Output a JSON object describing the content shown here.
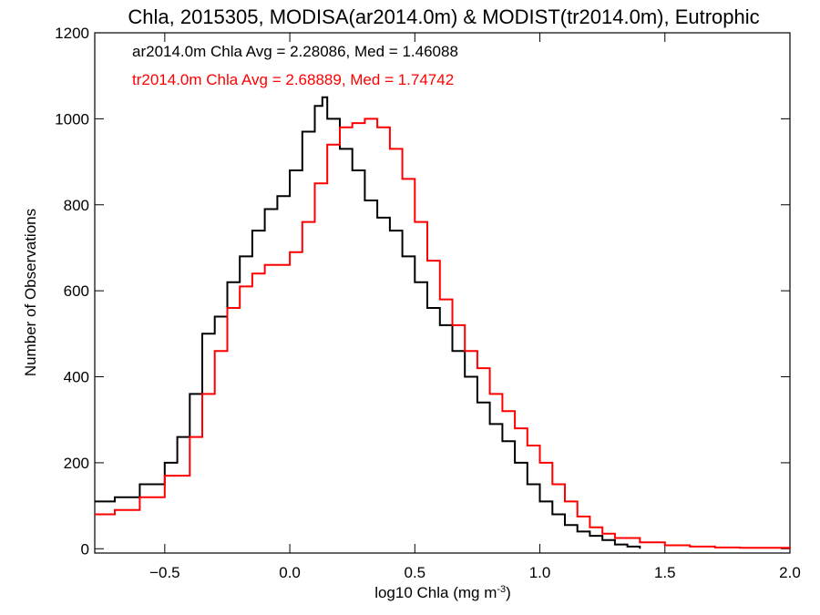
{
  "chart_data": {
    "type": "line",
    "title": "Chla, 2015305, MODISA(ar2014.0m) & MODIST(tr2014.0m), Eutrophic",
    "xlabel_main": "log10 Chla (mg m",
    "xlabel_exponent": "-3",
    "xlabel_close": ")",
    "ylabel": "Number of Observations",
    "xlim": [
      -0.78,
      2.0
    ],
    "ylim": [
      -10,
      1200
    ],
    "grid": false,
    "x_ticks": [
      -0.5,
      0.0,
      0.5,
      1.0,
      1.5,
      2.0
    ],
    "x_tick_labels": [
      "−0.5",
      "0.0",
      "0.5",
      "1.0",
      "1.5",
      "2.0"
    ],
    "y_ticks": [
      0,
      200,
      400,
      600,
      800,
      1000,
      1200
    ],
    "y_tick_labels": [
      "0",
      "200",
      "400",
      "600",
      "800",
      "1000",
      "1200"
    ],
    "legend_placement": "top-left",
    "series": [
      {
        "name": "ar2014.0m",
        "annotation": "ar2014.0m Chla Avg = 2.28086, Med = 1.46088",
        "color": "#000000",
        "x": [
          -0.78,
          -0.7,
          -0.6,
          -0.5,
          -0.45,
          -0.4,
          -0.35,
          -0.3,
          -0.25,
          -0.2,
          -0.15,
          -0.1,
          -0.05,
          0.0,
          0.05,
          0.1,
          0.13,
          0.15,
          0.2,
          0.25,
          0.3,
          0.35,
          0.4,
          0.45,
          0.5,
          0.55,
          0.6,
          0.65,
          0.7,
          0.75,
          0.8,
          0.85,
          0.9,
          0.95,
          1.0,
          1.05,
          1.1,
          1.15,
          1.2,
          1.25,
          1.3,
          1.35,
          1.4
        ],
        "y": [
          110,
          120,
          150,
          200,
          260,
          360,
          500,
          540,
          620,
          680,
          740,
          790,
          820,
          880,
          970,
          1030,
          1050,
          1000,
          930,
          880,
          810,
          770,
          740,
          680,
          620,
          560,
          520,
          460,
          400,
          340,
          290,
          250,
          200,
          150,
          110,
          80,
          55,
          40,
          30,
          20,
          10,
          5,
          0
        ]
      },
      {
        "name": "tr2014.0m",
        "annotation": "tr2014.0m Chla Avg = 2.68889, Med = 1.74742",
        "color": "#ff0000",
        "x": [
          -0.78,
          -0.7,
          -0.6,
          -0.5,
          -0.4,
          -0.35,
          -0.3,
          -0.25,
          -0.2,
          -0.15,
          -0.1,
          -0.05,
          0.0,
          0.05,
          0.1,
          0.15,
          0.2,
          0.25,
          0.3,
          0.35,
          0.4,
          0.45,
          0.5,
          0.55,
          0.6,
          0.65,
          0.7,
          0.75,
          0.8,
          0.85,
          0.9,
          0.95,
          1.0,
          1.05,
          1.1,
          1.15,
          1.2,
          1.25,
          1.3,
          1.4,
          1.5,
          1.6,
          1.7,
          1.8,
          2.0
        ],
        "y": [
          80,
          90,
          120,
          170,
          260,
          360,
          460,
          560,
          610,
          640,
          660,
          660,
          690,
          760,
          850,
          940,
          980,
          990,
          1000,
          980,
          930,
          860,
          760,
          670,
          580,
          520,
          460,
          420,
          360,
          320,
          280,
          240,
          200,
          150,
          110,
          75,
          50,
          35,
          25,
          15,
          8,
          5,
          3,
          2,
          0
        ]
      }
    ]
  }
}
